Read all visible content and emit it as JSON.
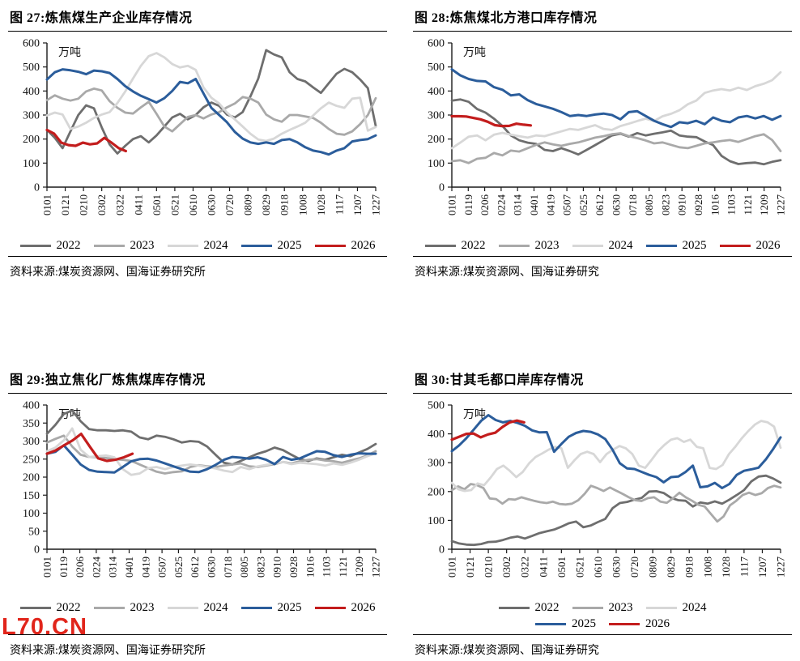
{
  "watermark": "L70.CN",
  "colors": {
    "2022": "#6e6e6e",
    "2023": "#a9a9a9",
    "2024": "#d7d7d7",
    "2025": "#2b5d9b",
    "2026": "#c31d1d"
  },
  "chart_data": [
    {
      "type": "line",
      "title": "图 27:炼焦煤生产企业库存情况",
      "unit": "万吨",
      "source": "资料来源:煤炭资源网、国海证券研究所",
      "ylim": [
        0,
        600
      ],
      "ytick_step": 100,
      "grid": false,
      "legend_position": "bottom",
      "legend_rows": [
        [
          "2022",
          "2023",
          "2024",
          "2025",
          "2026"
        ]
      ],
      "x_ticklabels": [
        "0101",
        "0121",
        "0210",
        "0302",
        "0322",
        "0411",
        "0501",
        "0521",
        "0610",
        "0630",
        "0720",
        "0809",
        "0829",
        "0918",
        "1008",
        "1028",
        "1117",
        "1207",
        "1227"
      ],
      "series": [
        {
          "name": "2022",
          "color": "#6e6e6e",
          "values": [
            238,
            205,
            162,
            232,
            300,
            340,
            328,
            248,
            178,
            140,
            172,
            200,
            212,
            186,
            215,
            252,
            290,
            305,
            282,
            300,
            332,
            352,
            338,
            302,
            290,
            312,
            378,
            452,
            570,
            552,
            540,
            478,
            450,
            440,
            415,
            392,
            432,
            472,
            492,
            478,
            448,
            412,
            255
          ]
        },
        {
          "name": "2023",
          "color": "#a9a9a9",
          "values": [
            362,
            382,
            368,
            360,
            368,
            398,
            410,
            402,
            358,
            330,
            310,
            306,
            332,
            355,
            305,
            252,
            232,
            262,
            292,
            300,
            286,
            302,
            312,
            332,
            348,
            375,
            368,
            352,
            302,
            282,
            272,
            300,
            300,
            294,
            288,
            268,
            242,
            222,
            218,
            232,
            262,
            300,
            370
          ]
        },
        {
          "name": "2024",
          "color": "#d7d7d7",
          "values": [
            298,
            310,
            302,
            242,
            252,
            268,
            288,
            302,
            312,
            350,
            398,
            452,
            505,
            545,
            558,
            540,
            512,
            498,
            505,
            488,
            415,
            372,
            348,
            310,
            282,
            252,
            222,
            198,
            192,
            202,
            222,
            238,
            252,
            268,
            298,
            328,
            352,
            338,
            330,
            368,
            372,
            235,
            250
          ]
        },
        {
          "name": "2025",
          "color": "#2b5d9b",
          "width": 3,
          "values": [
            448,
            478,
            490,
            486,
            480,
            470,
            485,
            482,
            475,
            450,
            420,
            398,
            380,
            366,
            352,
            370,
            400,
            438,
            432,
            450,
            390,
            330,
            300,
            270,
            230,
            202,
            186,
            180,
            186,
            180,
            196,
            200,
            186,
            166,
            152,
            146,
            136,
            152,
            162,
            190,
            196,
            200,
            215
          ]
        },
        {
          "name": "2026",
          "color": "#c31d1d",
          "width": 3.2,
          "end_frac": 0.24,
          "values": [
            238,
            222,
            185,
            175,
            172,
            185,
            178,
            182,
            205,
            185,
            162,
            150
          ]
        }
      ]
    },
    {
      "type": "line",
      "title": "图 28:炼焦煤北方港口库存情况",
      "unit": "万吨",
      "source": "资料来源:煤炭资源网、国海证券研究",
      "ylim": [
        0,
        600
      ],
      "ytick_step": 100,
      "grid": false,
      "legend_position": "bottom",
      "legend_rows": [
        [
          "2022",
          "2023",
          "2024",
          "2025",
          "2026"
        ]
      ],
      "x_ticklabels": [
        "0101",
        "0119",
        "0206",
        "0224",
        "0314",
        "0401",
        "0419",
        "0507",
        "0525",
        "0612",
        "0630",
        "0718",
        "0805",
        "0823",
        "0910",
        "0928",
        "1016",
        "1103",
        "1121",
        "1209",
        "1227"
      ],
      "series": [
        {
          "name": "2022",
          "color": "#6e6e6e",
          "values": [
            360,
            365,
            355,
            325,
            310,
            285,
            255,
            215,
            195,
            185,
            180,
            155,
            150,
            162,
            150,
            136,
            155,
            175,
            195,
            215,
            222,
            210,
            225,
            215,
            222,
            228,
            235,
            215,
            210,
            208,
            190,
            175,
            130,
            108,
            96,
            100,
            102,
            95,
            105,
            112
          ]
        },
        {
          "name": "2023",
          "color": "#a9a9a9",
          "values": [
            108,
            112,
            100,
            118,
            122,
            142,
            132,
            152,
            148,
            162,
            176,
            186,
            178,
            172,
            180,
            186,
            196,
            206,
            212,
            220,
            224,
            212,
            204,
            194,
            182,
            186,
            176,
            166,
            162,
            172,
            182,
            186,
            192,
            196,
            188,
            200,
            212,
            220,
            196,
            150
          ]
        },
        {
          "name": "2024",
          "color": "#d7d7d7",
          "values": [
            162,
            185,
            210,
            215,
            195,
            218,
            226,
            218,
            212,
            206,
            215,
            212,
            222,
            232,
            242,
            238,
            248,
            258,
            242,
            238,
            254,
            264,
            275,
            285,
            275,
            295,
            305,
            320,
            345,
            360,
            392,
            402,
            408,
            402,
            414,
            404,
            420,
            430,
            445,
            478
          ]
        },
        {
          "name": "2025",
          "color": "#2b5d9b",
          "width": 3,
          "values": [
            490,
            465,
            450,
            442,
            440,
            416,
            405,
            382,
            386,
            362,
            346,
            336,
            326,
            312,
            296,
            300,
            296,
            302,
            306,
            300,
            282,
            312,
            316,
            296,
            276,
            262,
            250,
            270,
            266,
            276,
            262,
            290,
            276,
            270,
            290,
            296,
            286,
            296,
            280,
            296
          ]
        },
        {
          "name": "2026",
          "color": "#c31d1d",
          "width": 3.2,
          "end_frac": 0.24,
          "values": [
            295,
            295,
            294,
            288,
            282,
            272,
            258,
            254,
            255,
            264,
            260,
            257
          ]
        }
      ]
    },
    {
      "type": "line",
      "title": "图 29:独立焦化厂炼焦煤库存情况",
      "unit": "万吨",
      "source": "资料来源:煤炭资源网、国海证券研究所",
      "ylim": [
        0,
        400
      ],
      "ytick_step": 50,
      "grid": false,
      "legend_position": "bottom",
      "legend_rows": [
        [
          "2022",
          "2023",
          "2024",
          "2025",
          "2026"
        ]
      ],
      "x_ticklabels": [
        "0101",
        "0119",
        "0206",
        "0224",
        "0314",
        "0401",
        "0419",
        "0507",
        "0525",
        "0612",
        "0630",
        "0718",
        "0805",
        "0823",
        "0910",
        "0928",
        "1016",
        "1103",
        "1121",
        "1209",
        "1227"
      ],
      "series": [
        {
          "name": "2022",
          "color": "#6e6e6e",
          "values": [
            320,
            345,
            375,
            385,
            355,
            333,
            330,
            330,
            328,
            330,
            326,
            310,
            305,
            315,
            312,
            305,
            296,
            300,
            298,
            285,
            262,
            240,
            235,
            245,
            255,
            265,
            272,
            282,
            275,
            262,
            250,
            245,
            252,
            248,
            255,
            262,
            258,
            268,
            278,
            292
          ]
        },
        {
          "name": "2023",
          "color": "#a9a9a9",
          "values": [
            296,
            306,
            315,
            285,
            262,
            256,
            255,
            253,
            250,
            248,
            245,
            235,
            225,
            215,
            210,
            214,
            216,
            228,
            233,
            230,
            228,
            232,
            235,
            238,
            230,
            228,
            232,
            236,
            242,
            238,
            244,
            248,
            250,
            246,
            244,
            240,
            246,
            252,
            260,
            272
          ]
        },
        {
          "name": "2024",
          "color": "#d7d7d7",
          "values": [
            272,
            282,
            302,
            335,
            276,
            256,
            258,
            260,
            255,
            222,
            206,
            210,
            225,
            228,
            222,
            228,
            232,
            235,
            232,
            228,
            224,
            218,
            214,
            228,
            222,
            230,
            234,
            238,
            242,
            236,
            240,
            238,
            236,
            232,
            238,
            234,
            240,
            248,
            258,
            266
          ]
        },
        {
          "name": "2025",
          "color": "#2b5d9b",
          "width": 3,
          "values": [
            265,
            270,
            288,
            262,
            235,
            220,
            215,
            214,
            213,
            228,
            244,
            250,
            251,
            246,
            238,
            230,
            222,
            215,
            214,
            222,
            234,
            248,
            256,
            254,
            251,
            255,
            248,
            236,
            256,
            248,
            252,
            262,
            272,
            270,
            261,
            256,
            262,
            266,
            265,
            265
          ]
        },
        {
          "name": "2026",
          "color": "#c31d1d",
          "width": 3.2,
          "end_frac": 0.26,
          "values": [
            265,
            274,
            288,
            302,
            320,
            285,
            252,
            245,
            248,
            255,
            265
          ]
        }
      ]
    },
    {
      "type": "line",
      "title": "图 30:甘其毛都口岸库存情况",
      "unit": "万吨",
      "source": "资料来源:煤炭资源网、国海证券研究",
      "ylim": [
        0,
        500
      ],
      "ytick_step": 100,
      "grid": false,
      "legend_position": "bottom",
      "legend_rows": [
        [
          "2022",
          "2023",
          "2024"
        ],
        [
          "2025",
          "2026"
        ]
      ],
      "x_ticklabels": [
        "0101",
        "0121",
        "0210",
        "0302",
        "0322",
        "0411",
        "0501",
        "0521",
        "0610",
        "0630",
        "0720",
        "0809",
        "0829",
        "0918",
        "1008",
        "1028",
        "1117",
        "1207",
        "1227"
      ],
      "series": [
        {
          "name": "2022",
          "color": "#6e6e6e",
          "values": [
            28,
            20,
            16,
            15,
            18,
            25,
            26,
            32,
            40,
            44,
            37,
            46,
            56,
            62,
            68,
            78,
            90,
            96,
            76,
            82,
            94,
            105,
            142,
            160,
            164,
            172,
            178,
            200,
            201,
            195,
            178,
            170,
            168,
            148,
            162,
            158,
            166,
            158,
            172,
            188,
            205,
            235,
            252,
            255,
            245,
            231
          ]
        },
        {
          "name": "2023",
          "color": "#a9a9a9",
          "values": [
            205,
            218,
            208,
            226,
            222,
            212,
            176,
            174,
            158,
            174,
            172,
            180,
            174,
            168,
            163,
            160,
            165,
            157,
            155,
            158,
            170,
            192,
            220,
            212,
            202,
            214,
            203,
            192,
            180,
            170,
            167,
            177,
            180,
            165,
            161,
            177,
            196,
            180,
            168,
            154,
            148,
            122,
            96,
            114,
            152,
            168,
            188,
            196,
            188,
            194,
            212,
            220,
            214
          ]
        },
        {
          "name": "2024",
          "color": "#d7d7d7",
          "values": [
            230,
            208,
            202,
            205,
            228,
            222,
            248,
            278,
            290,
            272,
            250,
            268,
            298,
            320,
            332,
            345,
            355,
            350,
            282,
            308,
            330,
            338,
            330,
            302,
            330,
            345,
            358,
            350,
            330,
            290,
            282,
            310,
            340,
            362,
            380,
            385,
            372,
            380,
            355,
            350,
            282,
            278,
            292,
            330,
            356,
            385,
            410,
            432,
            445,
            440,
            425,
            352
          ]
        },
        {
          "name": "2025",
          "color": "#2b5d9b",
          "width": 3,
          "values": [
            340,
            360,
            385,
            415,
            445,
            465,
            448,
            440,
            445,
            438,
            428,
            412,
            405,
            406,
            338,
            365,
            390,
            403,
            410,
            407,
            398,
            382,
            345,
            298,
            280,
            278,
            268,
            258,
            250,
            232,
            250,
            252,
            268,
            290,
            215,
            218,
            230,
            212,
            226,
            258,
            272,
            277,
            283,
            312,
            348,
            388
          ]
        },
        {
          "name": "2026",
          "color": "#c31d1d",
          "width": 3.2,
          "end_frac": 0.22,
          "values": [
            380,
            390,
            400,
            401,
            388,
            398,
            404,
            424,
            440,
            446,
            440
          ]
        }
      ]
    }
  ]
}
